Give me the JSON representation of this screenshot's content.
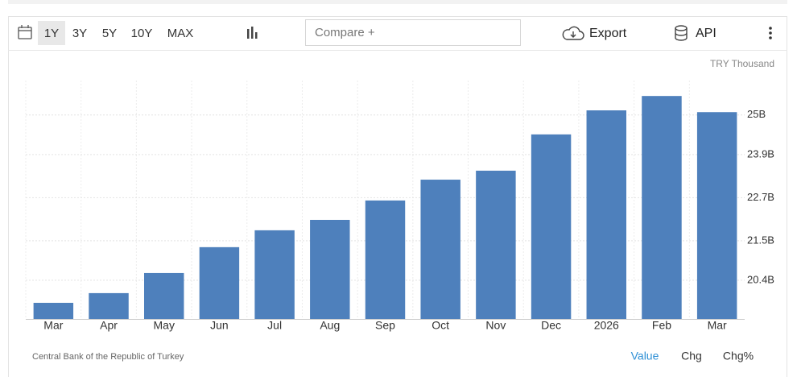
{
  "toolbar": {
    "ranges": [
      "1Y",
      "3Y",
      "5Y",
      "10Y",
      "MAX"
    ],
    "compare": "Compare +",
    "export": "Export",
    "api": "API"
  },
  "chart_data": {
    "type": "bar",
    "unit": "TRY Thousand",
    "categories": [
      "Mar",
      "Apr",
      "May",
      "Jun",
      "Jul",
      "Aug",
      "Sep",
      "Oct",
      "Nov",
      "Dec",
      "2026",
      "Feb",
      "Mar"
    ],
    "values": [
      19.77,
      20.04,
      20.6,
      21.32,
      21.79,
      22.08,
      22.62,
      23.2,
      23.45,
      24.46,
      25.13,
      25.53,
      25.08
    ],
    "color": "#4e80bc",
    "ylim": [
      19.32,
      25.96
    ],
    "yticks": [
      {
        "value": 20.4,
        "label": "20.4B"
      },
      {
        "value": 21.5,
        "label": "21.5B"
      },
      {
        "value": 22.7,
        "label": "22.7B"
      },
      {
        "value": 23.9,
        "label": "23.9B"
      },
      {
        "value": 25,
        "label": "25B"
      }
    ],
    "grid": true
  },
  "footer": {
    "source": "Central Bank of the Republic of Turkey",
    "tabs": [
      "Value",
      "Chg",
      "Chg%"
    ]
  }
}
